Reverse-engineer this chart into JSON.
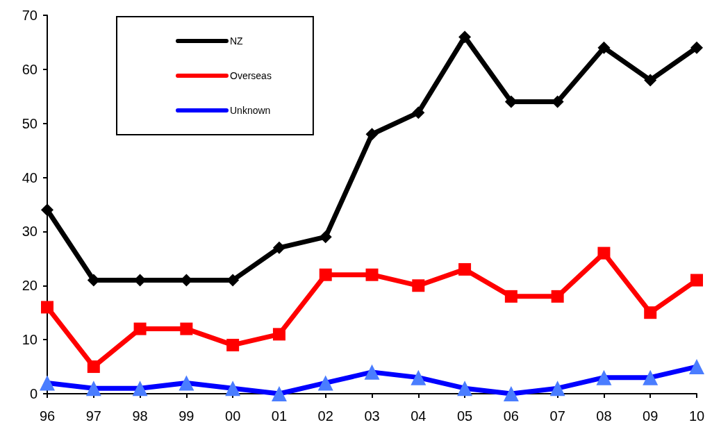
{
  "chart_data": {
    "type": "line",
    "categories": [
      "96",
      "97",
      "98",
      "99",
      "00",
      "01",
      "02",
      "03",
      "04",
      "05",
      "06",
      "07",
      "08",
      "09",
      "10"
    ],
    "series": [
      {
        "name": "NZ",
        "color": "#000000",
        "marker": "diamond",
        "values": [
          34,
          21,
          21,
          21,
          21,
          27,
          29,
          48,
          52,
          66,
          54,
          54,
          64,
          58,
          64
        ]
      },
      {
        "name": "Overseas",
        "color": "#ff0000",
        "marker": "square",
        "values": [
          16,
          5,
          12,
          12,
          9,
          11,
          22,
          22,
          20,
          23,
          18,
          18,
          26,
          15,
          21
        ]
      },
      {
        "name": "Unknown",
        "color": "#0000ff",
        "marker": "triangle",
        "values": [
          2,
          1,
          1,
          2,
          1,
          0,
          2,
          4,
          3,
          1,
          0,
          1,
          3,
          3,
          5
        ]
      }
    ],
    "ylim": [
      0,
      70
    ],
    "yticks": [
      0,
      10,
      20,
      30,
      40,
      50,
      60,
      70
    ],
    "grid": false,
    "legend": "top left",
    "line_style": "solid"
  }
}
